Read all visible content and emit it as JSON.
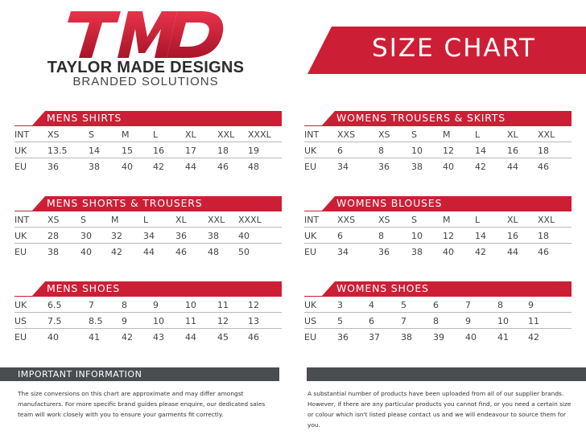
{
  "brand": {
    "logo_text": "TMD",
    "name": "TAYLOR MADE DESIGNS",
    "tagline": "BRANDED SOLUTIONS",
    "accent_color": "#cc1f36",
    "dark_color": "#4a4d50"
  },
  "banner": {
    "title": "SIZE CHART"
  },
  "sections": {
    "mens_shirts": {
      "title": "MENS SHIRTS",
      "rows": [
        [
          "INT",
          "XS",
          "S",
          "M",
          "L",
          "XL",
          "XXL",
          "XXXL"
        ],
        [
          "UK",
          "13.5",
          "14",
          "15",
          "16",
          "17",
          "18",
          "19"
        ],
        [
          "EU",
          "36",
          "38",
          "40",
          "42",
          "44",
          "46",
          "48"
        ]
      ]
    },
    "mens_shorts": {
      "title": "MENS SHORTS & TROUSERS",
      "rows": [
        [
          "INT",
          "XS",
          "S",
          "M",
          "L",
          "XL",
          "XXL",
          "XXXL"
        ],
        [
          "UK",
          "28",
          "30",
          "32",
          "34",
          "36",
          "38",
          "40"
        ],
        [
          "EU",
          "38",
          "40",
          "42",
          "44",
          "46",
          "48",
          "50"
        ]
      ]
    },
    "mens_shoes": {
      "title": "MENS SHOES",
      "rows": [
        [
          "UK",
          "6.5",
          "7",
          "8",
          "9",
          "10",
          "11",
          "12"
        ],
        [
          "US",
          "7.5",
          "8.5",
          "9",
          "10",
          "11",
          "12",
          "13"
        ],
        [
          "EU",
          "40",
          "41",
          "42",
          "43",
          "44",
          "45",
          "46"
        ]
      ]
    },
    "womens_trousers": {
      "title": "WOMENS TROUSERS & SKIRTS",
      "rows": [
        [
          "INT",
          "XXS",
          "XS",
          "S",
          "M",
          "L",
          "XL",
          "XXL"
        ],
        [
          "UK",
          "6",
          "8",
          "10",
          "12",
          "14",
          "16",
          "18"
        ],
        [
          "EU",
          "34",
          "36",
          "38",
          "40",
          "42",
          "44",
          "46"
        ]
      ]
    },
    "womens_blouses": {
      "title": "WOMENS BLOUSES",
      "rows": [
        [
          "INT",
          "XXS",
          "XS",
          "S",
          "M",
          "L",
          "XL",
          "XXL"
        ],
        [
          "UK",
          "6",
          "8",
          "10",
          "12",
          "14",
          "16",
          "18"
        ],
        [
          "EU",
          "34",
          "36",
          "38",
          "40",
          "42",
          "44",
          "46"
        ]
      ]
    },
    "womens_shoes": {
      "title": "WOMENS SHOES",
      "rows": [
        [
          "UK",
          "3",
          "4",
          "5",
          "6",
          "7",
          "8",
          "9"
        ],
        [
          "US",
          "5",
          "6",
          "7",
          "8",
          "9",
          "10",
          "11"
        ],
        [
          "EU",
          "36",
          "37",
          "38",
          "39",
          "40",
          "41",
          "42"
        ]
      ]
    }
  },
  "important": {
    "title": "IMPORTANT INFORMATION",
    "left_text": "The size conversions on this chart are approximate and may differ amongst manufacturers. For more specific brand guides please enquire, our dedicated sales team will work closely with you to ensure your garments fit correctly.",
    "right_text": "A substantial number of products have been uploaded from all of our supplier brands. However, if there are any particular products you cannot find, or you need a certain size or colour which isn't listed please contact us and we will endeavour to source them for you."
  }
}
